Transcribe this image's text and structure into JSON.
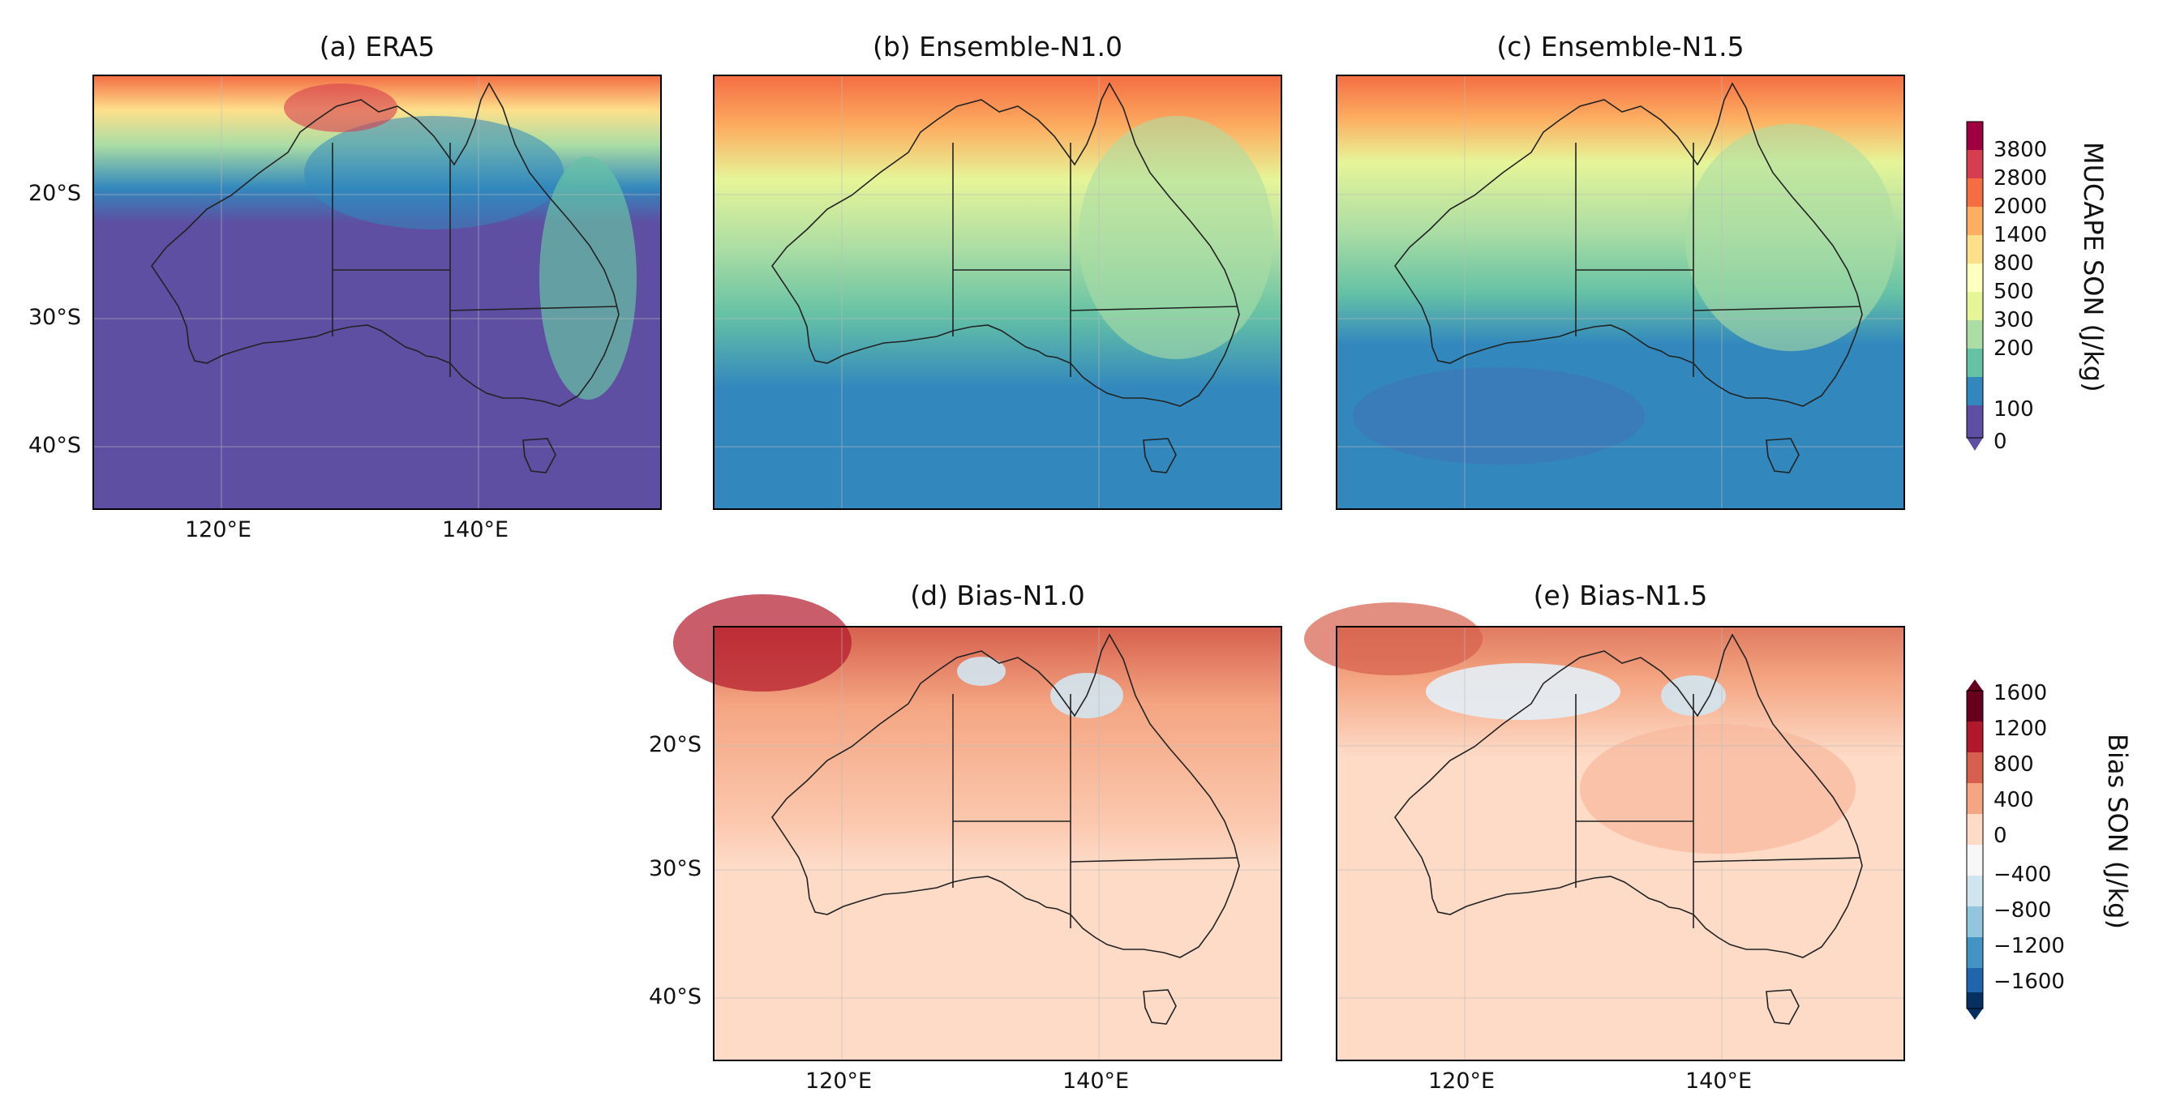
{
  "panels": {
    "a": {
      "title": "(a) ERA5"
    },
    "b": {
      "title": "(b) Ensemble-N1.0"
    },
    "c": {
      "title": "(c) Ensemble-N1.5"
    },
    "d": {
      "title": "(d) Bias-N1.0"
    },
    "e": {
      "title": "(e) Bias-N1.5"
    }
  },
  "axes": {
    "lat_ticks": [
      "20°S",
      "30°S",
      "40°S"
    ],
    "lon_ticks": [
      "120°E",
      "140°E"
    ]
  },
  "colorbar_top": {
    "label": "MUCAPE SON (J/kg)",
    "ticks": [
      "3800",
      "2800",
      "2000",
      "1400",
      "800",
      "500",
      "300",
      "200",
      "100",
      "0"
    ],
    "colors": [
      "#9e0142",
      "#d53e4f",
      "#f46d43",
      "#fdae61",
      "#fee08b",
      "#ffffbf",
      "#e6f598",
      "#abdda4",
      "#66c2a5",
      "#3288bd",
      "#5e4fa2"
    ]
  },
  "colorbar_bottom": {
    "label": "Bias SON (J/kg)",
    "ticks": [
      "1600",
      "1200",
      "800",
      "400",
      "0",
      "−400",
      "−800",
      "−1200",
      "−1600"
    ],
    "colors": [
      "#67001f",
      "#b2182b",
      "#d6604d",
      "#f4a582",
      "#fddbc7",
      "#f7f7f7",
      "#d1e5f0",
      "#92c5de",
      "#4393c3",
      "#2166ac",
      "#053061"
    ]
  }
}
